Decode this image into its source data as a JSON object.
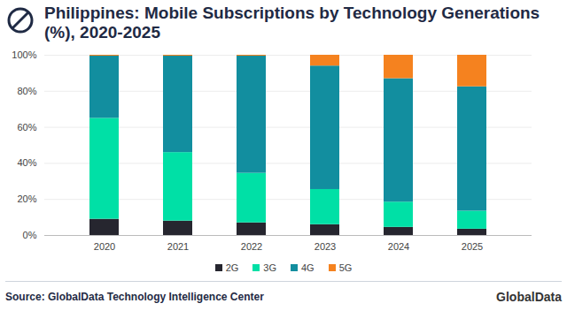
{
  "chart_data": {
    "type": "bar",
    "title": "Philippines: Mobile Subscriptions by Technology Generations (%), 2020-2025",
    "source": "Source: GlobalData Technology Intelligence Center",
    "brand": "GlobalData",
    "categories": [
      "2020",
      "2021",
      "2022",
      "2023",
      "2024",
      "2025"
    ],
    "series": [
      {
        "name": "2G",
        "color": "#26262f",
        "values": [
          9,
          8,
          7,
          6,
          4.5,
          3.5
        ]
      },
      {
        "name": "3G",
        "color": "#00e0a6",
        "values": [
          56,
          38,
          27.5,
          19.5,
          14,
          10
        ]
      },
      {
        "name": "4G",
        "color": "#128e9f",
        "values": [
          34.5,
          53.5,
          65,
          68.5,
          68.5,
          69
        ]
      },
      {
        "name": "5G",
        "color": "#f5821f",
        "values": [
          0.5,
          0.5,
          0.5,
          6,
          13,
          17.5
        ]
      }
    ],
    "ylim": [
      0,
      100
    ],
    "yticks": [
      {
        "value": 0,
        "label": "0%"
      },
      {
        "value": 20,
        "label": "20%"
      },
      {
        "value": 40,
        "label": "40%"
      },
      {
        "value": 60,
        "label": "60%"
      },
      {
        "value": 80,
        "label": "80%"
      },
      {
        "value": 100,
        "label": "100%"
      }
    ],
    "stacked": true,
    "grid": true,
    "legend": "bottom"
  }
}
